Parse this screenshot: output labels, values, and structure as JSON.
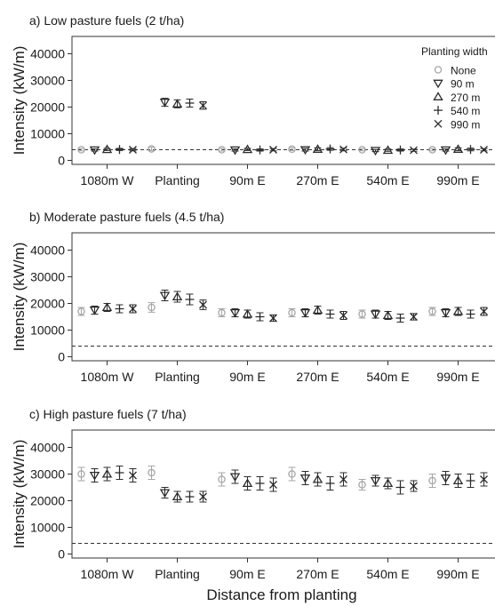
{
  "figure": {
    "xlabel": "Distance from planting",
    "ylabel": "Intensity (kW/m)",
    "colors": {
      "none_series": "#a6a6a6",
      "series": "#2b2b2b",
      "threshold_line": "#333333",
      "axis": "#333333"
    }
  },
  "legend": {
    "title": "Planting width",
    "entries": [
      {
        "label": "None",
        "marker": "circle"
      },
      {
        "label": "90 m",
        "marker": "triangle-down"
      },
      {
        "label": "270 m",
        "marker": "triangle-up"
      },
      {
        "label": "540 m",
        "marker": "plus"
      },
      {
        "label": "990 m",
        "marker": "x"
      }
    ]
  },
  "chart_data": [
    {
      "type": "scatter",
      "title": "a) Low pasture fuels (2 t/ha)",
      "xlabel": "",
      "ylabel": "Intensity (kW/m)",
      "categories": [
        "1080m W",
        "Planting",
        "90m E",
        "270m E",
        "540m E",
        "990m E"
      ],
      "ylim": [
        -1500,
        46500
      ],
      "yticks": [
        0,
        10000,
        20000,
        30000,
        40000
      ],
      "reference_line": 4000,
      "grid": false,
      "series": [
        {
          "name": "None",
          "values": [
            4000,
            4300,
            4000,
            4200,
            4000,
            4000
          ],
          "err": [
            400,
            600,
            500,
            500,
            400,
            400
          ]
        },
        {
          "name": "90 m",
          "values": [
            3900,
            21800,
            3900,
            4000,
            3700,
            3900
          ],
          "err": [
            400,
            1500,
            400,
            500,
            400,
            400
          ]
        },
        {
          "name": "270 m",
          "values": [
            4100,
            21200,
            4100,
            4200,
            3800,
            4200
          ],
          "err": [
            400,
            1500,
            400,
            500,
            400,
            500
          ]
        },
        {
          "name": "540 m",
          "values": [
            4100,
            21500,
            3900,
            4300,
            3900,
            4100
          ],
          "err": [
            400,
            1500,
            400,
            500,
            400,
            500
          ]
        },
        {
          "name": "990 m",
          "values": [
            4000,
            20600,
            4000,
            4100,
            3800,
            4000
          ],
          "err": [
            400,
            1400,
            400,
            500,
            400,
            400
          ]
        }
      ]
    },
    {
      "type": "scatter",
      "title": "b) Moderate pasture fuels (4.5 t/ha)",
      "xlabel": "",
      "ylabel": "Intensity (kW/m)",
      "categories": [
        "1080m W",
        "Planting",
        "90m E",
        "270m E",
        "540m E",
        "990m E"
      ],
      "ylim": [
        -1500,
        46500
      ],
      "yticks": [
        0,
        10000,
        20000,
        30000,
        40000
      ],
      "reference_line": 4000,
      "grid": false,
      "series": [
        {
          "name": "None",
          "values": [
            17000,
            18500,
            16500,
            16500,
            16000,
            17000
          ],
          "err": [
            1500,
            1800,
            1500,
            1500,
            1500,
            1500
          ]
        },
        {
          "name": "90 m",
          "values": [
            17500,
            23000,
            16500,
            16500,
            16000,
            16500
          ],
          "err": [
            1500,
            2000,
            1500,
            1500,
            1500,
            1500
          ]
        },
        {
          "name": "270 m",
          "values": [
            18500,
            22500,
            16000,
            17500,
            15500,
            17000
          ],
          "err": [
            1500,
            2000,
            1500,
            1500,
            1500,
            1500
          ]
        },
        {
          "name": "540 m",
          "values": [
            18000,
            21500,
            15000,
            16000,
            14500,
            16000
          ],
          "err": [
            1500,
            2000,
            1500,
            1500,
            1500,
            1500
          ]
        },
        {
          "name": "990 m",
          "values": [
            18000,
            19500,
            14500,
            15500,
            15000,
            17000
          ],
          "err": [
            1500,
            1800,
            1200,
            1500,
            1200,
            1500
          ]
        }
      ]
    },
    {
      "type": "scatter",
      "title": "c) High pasture fuels (7 t/ha)",
      "xlabel": "Distance from planting",
      "ylabel": "Intensity (kW/m)",
      "categories": [
        "1080m W",
        "Planting",
        "90m E",
        "270m E",
        "540m E",
        "990m E"
      ],
      "ylim": [
        -1500,
        46500
      ],
      "yticks": [
        0,
        10000,
        20000,
        30000,
        40000
      ],
      "reference_line": 4000,
      "grid": false,
      "series": [
        {
          "name": "None",
          "values": [
            30000,
            30500,
            28000,
            30000,
            26000,
            27500
          ],
          "err": [
            2500,
            2500,
            2500,
            2500,
            2000,
            2500
          ]
        },
        {
          "name": "90 m",
          "values": [
            29500,
            23000,
            29000,
            28500,
            27500,
            28500
          ],
          "err": [
            2500,
            2000,
            2500,
            2500,
            2000,
            2500
          ]
        },
        {
          "name": "270 m",
          "values": [
            30000,
            21500,
            26500,
            28000,
            26500,
            27500
          ],
          "err": [
            2500,
            2000,
            2500,
            2500,
            2000,
            2500
          ]
        },
        {
          "name": "540 m",
          "values": [
            30500,
            21500,
            26500,
            26500,
            25000,
            27500
          ],
          "err": [
            2500,
            2000,
            2500,
            2500,
            2500,
            2500
          ]
        },
        {
          "name": "990 m",
          "values": [
            29500,
            21500,
            26000,
            28000,
            25500,
            28000
          ],
          "err": [
            2500,
            2000,
            2500,
            2500,
            2000,
            2500
          ]
        }
      ]
    }
  ]
}
